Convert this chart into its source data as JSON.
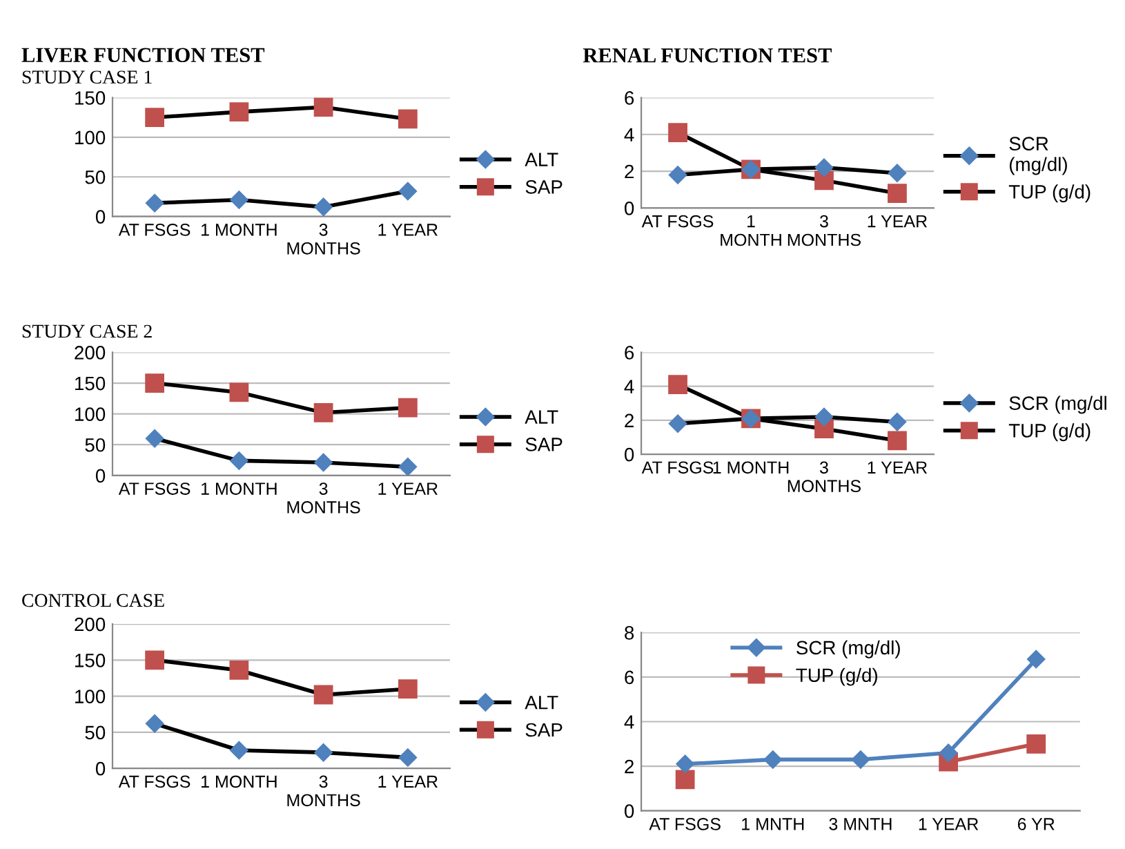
{
  "chart_data": [
    {
      "type": "line",
      "title": "LIVER FUNCTION TEST",
      "subtitle": "STUDY CASE 1",
      "categories": [
        "AT FSGS",
        "1 MONTH",
        "3\nMONTHS",
        "1 YEAR"
      ],
      "ylim": [
        0,
        150
      ],
      "yticks": [
        0,
        50,
        100,
        150
      ],
      "grid": "y",
      "legend": "right",
      "series": [
        {
          "name": "ALT",
          "color": "#4f81bd",
          "marker": "diamond",
          "values": [
            17,
            21,
            12,
            32
          ]
        },
        {
          "name": "SAP",
          "color": "#c0504d",
          "marker": "square",
          "values": [
            125,
            132,
            138,
            123
          ]
        }
      ]
    },
    {
      "type": "line",
      "title": "RENAL FUNCTION TEST",
      "categories": [
        "AT FSGS",
        "1\nMONTH",
        "3\nMONTHS",
        "1 YEAR"
      ],
      "ylim": [
        0,
        6
      ],
      "yticks": [
        0,
        2,
        4,
        6
      ],
      "grid": "y",
      "legend": "right",
      "series": [
        {
          "name": "SCR\n(mg/dl)",
          "color": "#4f81bd",
          "marker": "diamond",
          "values": [
            1.8,
            2.1,
            2.2,
            1.9
          ]
        },
        {
          "name": "TUP (g/d)",
          "color": "#c0504d",
          "marker": "square",
          "values": [
            4.1,
            2.1,
            1.5,
            0.8
          ]
        }
      ]
    },
    {
      "type": "line",
      "title": "STUDY CASE 2",
      "categories": [
        "AT FSGS",
        "1 MONTH",
        "3\nMONTHS",
        "1 YEAR"
      ],
      "ylim": [
        0,
        200
      ],
      "yticks": [
        0,
        50,
        100,
        150,
        200
      ],
      "grid": "y",
      "legend": "right",
      "series": [
        {
          "name": "ALT",
          "color": "#4f81bd",
          "marker": "diamond",
          "values": [
            60,
            24,
            21,
            14
          ]
        },
        {
          "name": "SAP",
          "color": "#c0504d",
          "marker": "square",
          "values": [
            150,
            135,
            102,
            110
          ]
        }
      ]
    },
    {
      "type": "line",
      "categories": [
        "AT FSGS",
        "1 MONTH",
        "3\nMONTHS",
        "1 YEAR"
      ],
      "ylim": [
        0,
        6
      ],
      "yticks": [
        0,
        2,
        4,
        6
      ],
      "grid": "y",
      "legend": "right",
      "series": [
        {
          "name": "SCR (mg/dl",
          "color": "#4f81bd",
          "marker": "diamond",
          "values": [
            1.8,
            2.1,
            2.2,
            1.9
          ]
        },
        {
          "name": "TUP (g/d)",
          "color": "#c0504d",
          "marker": "square",
          "values": [
            4.1,
            2.1,
            1.5,
            0.8
          ]
        }
      ]
    },
    {
      "type": "line",
      "title": "CONTROL CASE",
      "categories": [
        "AT FSGS",
        "1 MONTH",
        "3\nMONTHS",
        "1 YEAR"
      ],
      "ylim": [
        0,
        200
      ],
      "yticks": [
        0,
        50,
        100,
        150,
        200
      ],
      "grid": "y",
      "legend": "right",
      "series": [
        {
          "name": "ALT",
          "color": "#4f81bd",
          "marker": "diamond",
          "values": [
            62,
            25,
            22,
            15
          ]
        },
        {
          "name": "SAP",
          "color": "#c0504d",
          "marker": "square",
          "values": [
            150,
            136,
            102,
            110
          ]
        }
      ]
    },
    {
      "type": "line",
      "categories": [
        "AT FSGS",
        "1 MNTH",
        "3 MNTH",
        "1 YEAR",
        "6 YR"
      ],
      "ylim": [
        0,
        8
      ],
      "yticks": [
        0,
        2,
        4,
        6,
        8
      ],
      "grid": "y",
      "legend": "top",
      "series": [
        {
          "name": "SCR (mg/dl)",
          "color": "#4f81bd",
          "marker": "diamond",
          "values": [
            2.1,
            2.3,
            2.3,
            2.6,
            6.8
          ]
        },
        {
          "name": "TUP (g/d)",
          "color": "#c0504d",
          "marker": "square",
          "values": [
            1.4,
            null,
            null,
            2.2,
            3.0
          ]
        }
      ]
    }
  ]
}
